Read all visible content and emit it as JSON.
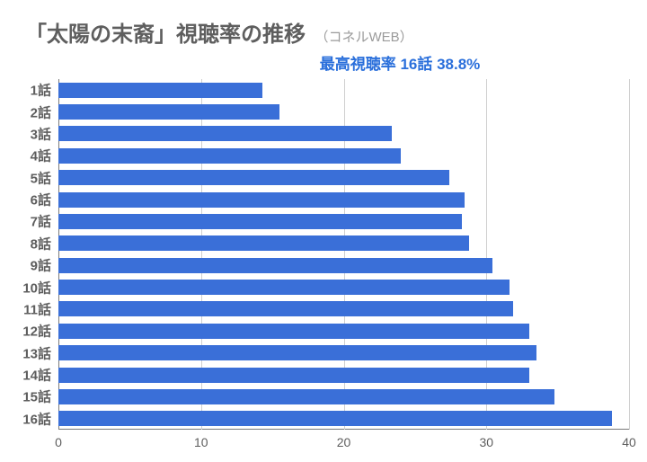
{
  "title": {
    "main": "「太陽の末裔」視聴率の推移",
    "sub": "（コネルWEB）",
    "main_fontsize": 24,
    "sub_fontsize": 15,
    "main_color": "#5e5e5e",
    "sub_color": "#9a9a9a"
  },
  "highlight": {
    "text": "最高視聴率 16話 38.8%",
    "fontsize": 17,
    "color": "#2a6fdb"
  },
  "chart": {
    "type": "bar-horizontal",
    "xlim": [
      0,
      40
    ],
    "xticks": [
      0,
      10,
      20,
      30,
      40
    ],
    "xlabel_fontsize": 14,
    "ylabel_fontsize": 15,
    "bar_color": "#3a6fd8",
    "grid_color": "#cfcfcf",
    "axis_color": "#7a7a7a",
    "background_color": "#ffffff",
    "bar_gap_ratio": 0.3,
    "categories": [
      "1話",
      "2話",
      "3話",
      "4話",
      "5話",
      "6話",
      "7話",
      "8話",
      "9話",
      "10話",
      "11話",
      "12話",
      "13話",
      "14話",
      "15話",
      "16話"
    ],
    "values": [
      14.3,
      15.5,
      23.4,
      24.0,
      27.4,
      28.5,
      28.3,
      28.8,
      30.4,
      31.6,
      31.9,
      33.0,
      33.5,
      33.0,
      34.8,
      38.8
    ]
  }
}
